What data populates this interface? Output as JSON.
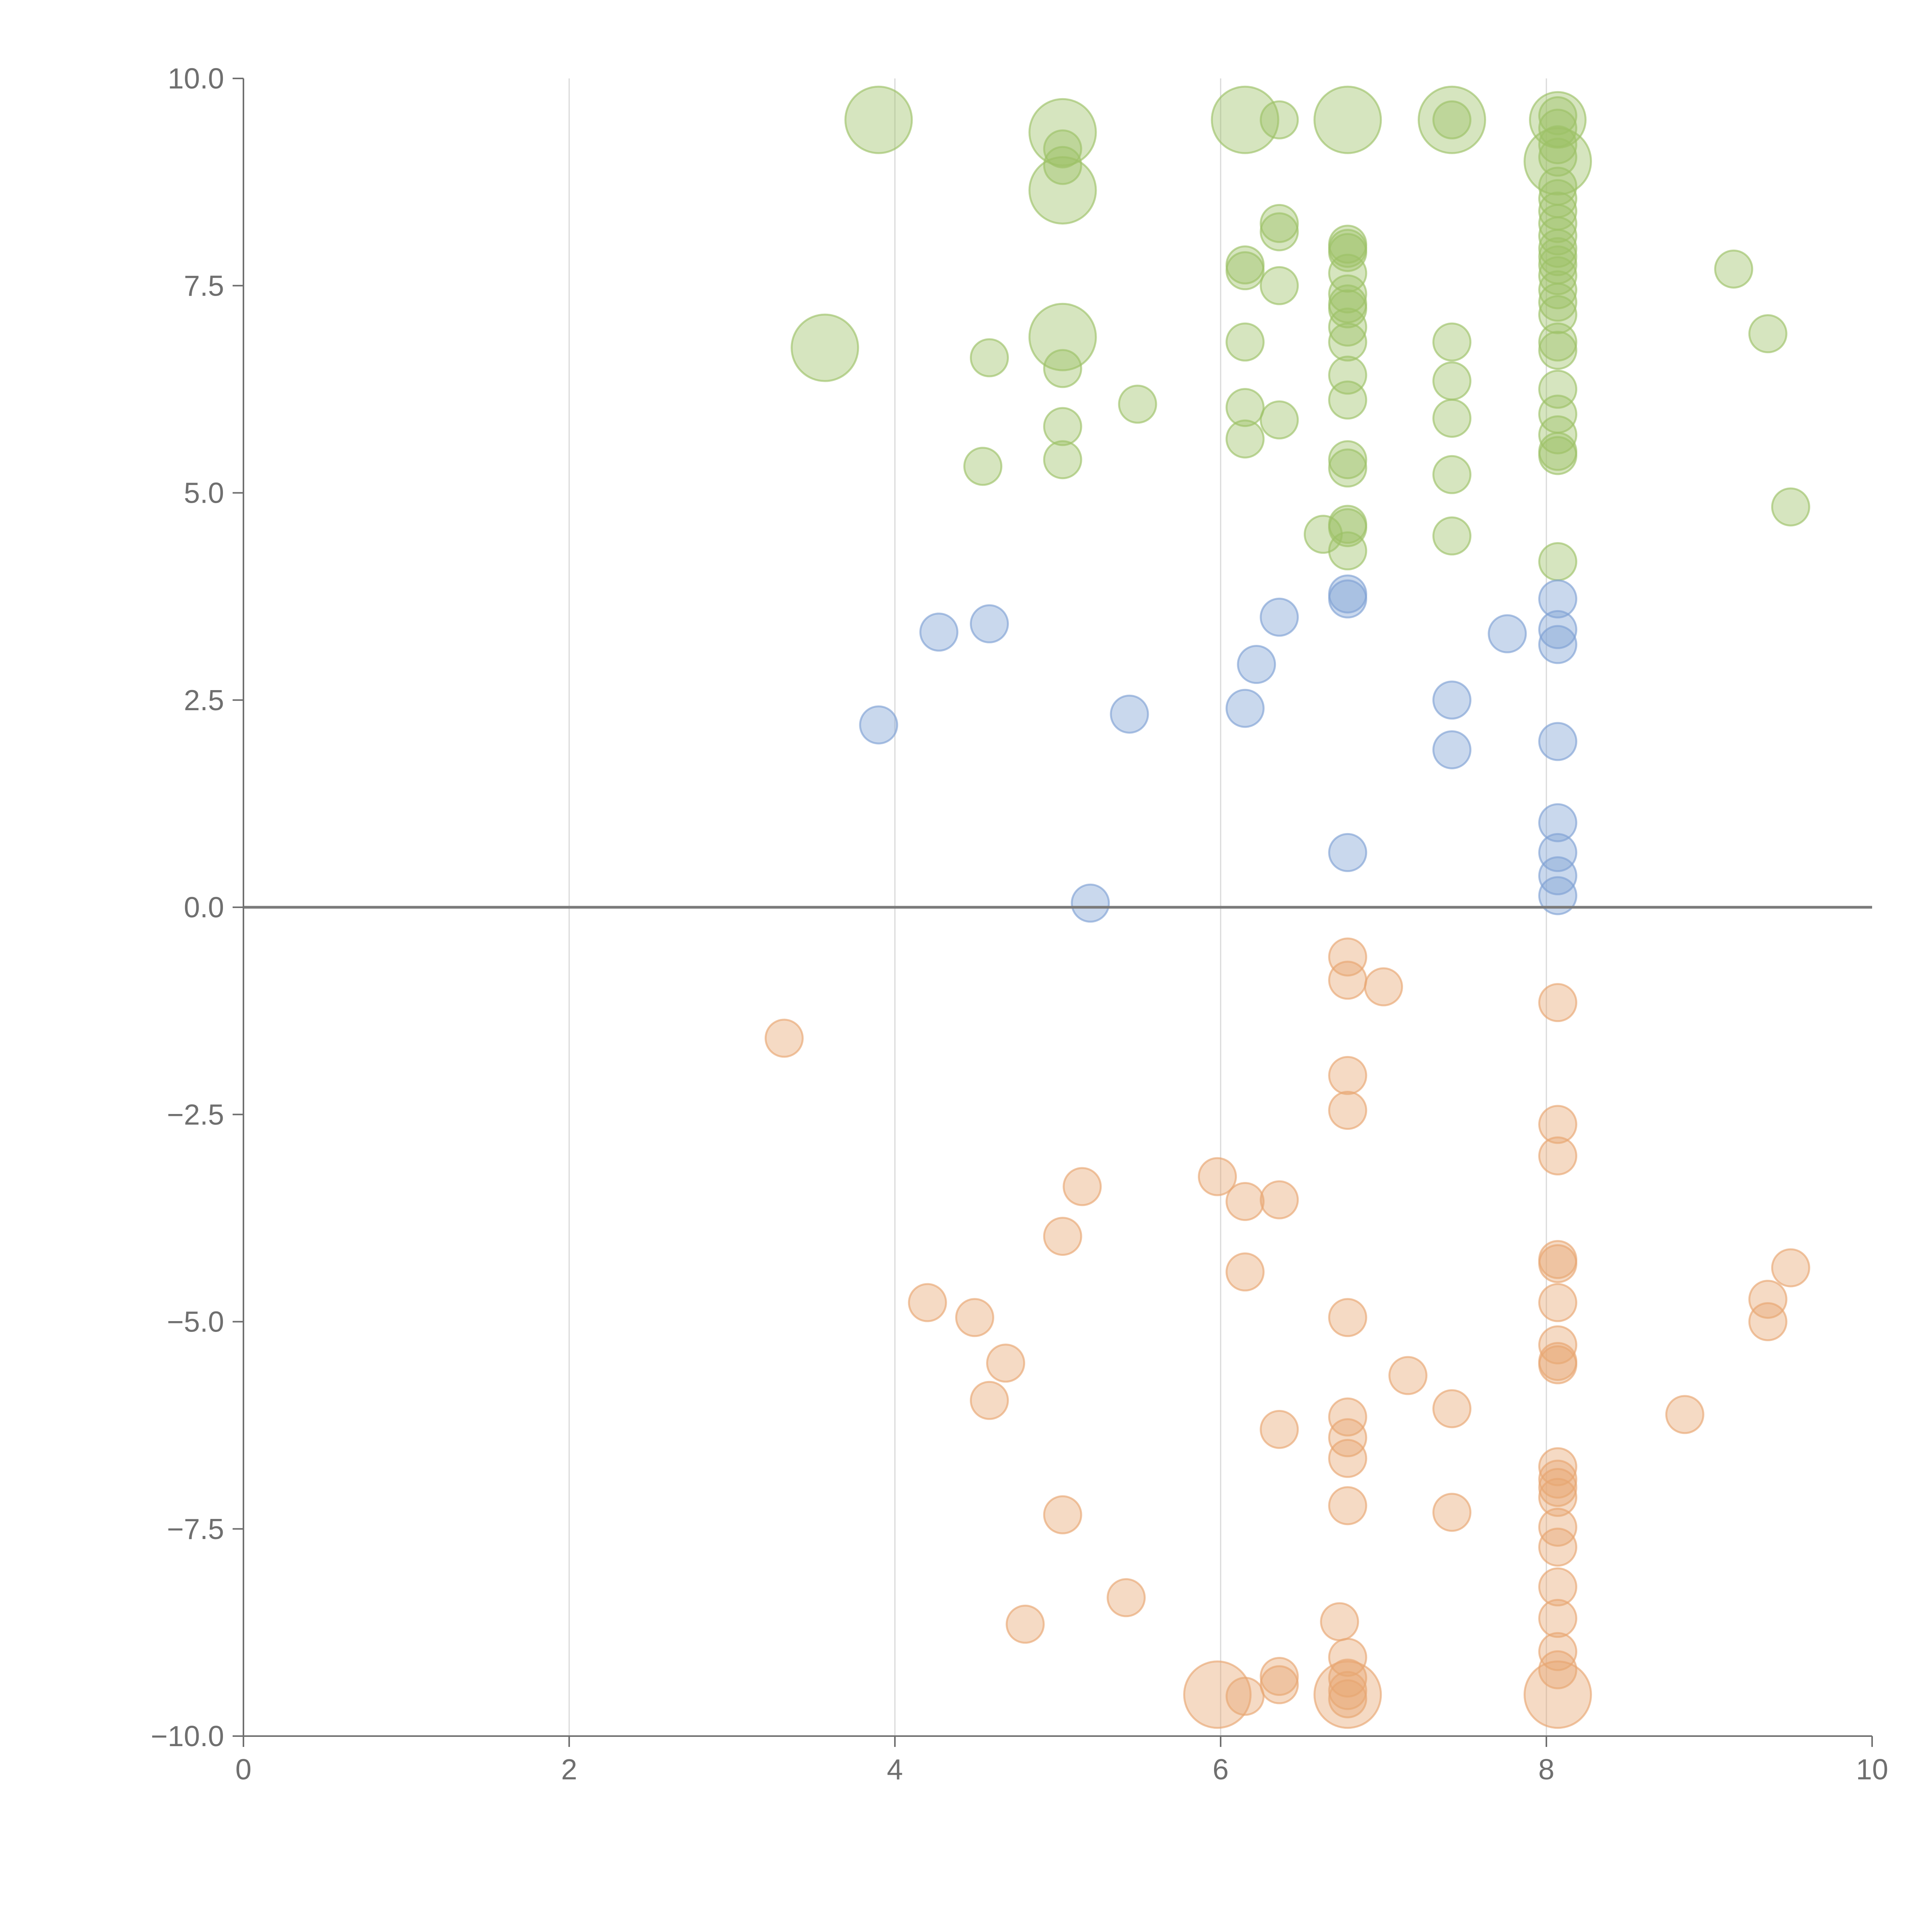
{
  "chart_data": {
    "type": "scatter",
    "title": "",
    "xlabel": "",
    "ylabel": "",
    "xlim": [
      0,
      10
    ],
    "ylim": [
      -10,
      10
    ],
    "xticks": [
      "0",
      "2",
      "4",
      "6",
      "8",
      "10"
    ],
    "yticks": [
      "10.0",
      "7.5",
      "5.0",
      "2.5",
      "0.0",
      "−2.5",
      "−5.0",
      "−7.5",
      "−10.0"
    ],
    "grid": "vertical at x = 2, 4, 6, 8",
    "reference_line_y": 0,
    "series": [
      {
        "color": "#9dc167",
        "points": [
          [
            3.9,
            9.5,
            3
          ],
          [
            5.03,
            9.35,
            3
          ],
          [
            5.03,
            8.65,
            3
          ],
          [
            6.15,
            9.5,
            3
          ],
          [
            6.78,
            9.5,
            3
          ],
          [
            7.42,
            9.5,
            3
          ],
          [
            8.07,
            9.5,
            2
          ],
          [
            8.07,
            9.0,
            3
          ],
          [
            3.57,
            6.75,
            3
          ],
          [
            5.03,
            6.88,
            3
          ],
          [
            5.03,
            9.15,
            1
          ],
          [
            5.03,
            8.95,
            1
          ],
          [
            6.36,
            9.5,
            1
          ],
          [
            7.42,
            9.5,
            1
          ],
          [
            8.07,
            9.4,
            1
          ],
          [
            8.07,
            9.55,
            1
          ],
          [
            8.07,
            9.2,
            1
          ],
          [
            8.07,
            9.05,
            1
          ],
          [
            6.36,
            8.25,
            1
          ],
          [
            6.36,
            8.15,
            1
          ],
          [
            6.15,
            7.75,
            1
          ],
          [
            6.15,
            7.68,
            1
          ],
          [
            6.36,
            7.5,
            1
          ],
          [
            6.78,
            8.0,
            1
          ],
          [
            6.78,
            7.95,
            1
          ],
          [
            6.78,
            7.9,
            1
          ],
          [
            6.78,
            7.65,
            1
          ],
          [
            6.78,
            7.4,
            1
          ],
          [
            6.78,
            7.28,
            1
          ],
          [
            6.78,
            7.22,
            1
          ],
          [
            6.78,
            7.0,
            1
          ],
          [
            6.78,
            6.82,
            1
          ],
          [
            6.78,
            6.42,
            1
          ],
          [
            6.78,
            6.12,
            1
          ],
          [
            6.78,
            5.4,
            1
          ],
          [
            6.78,
            5.3,
            1
          ],
          [
            6.78,
            4.62,
            1
          ],
          [
            6.78,
            4.58,
            1
          ],
          [
            6.78,
            4.3,
            1
          ],
          [
            6.63,
            4.5,
            1
          ],
          [
            8.07,
            8.7,
            1
          ],
          [
            8.07,
            8.55,
            1
          ],
          [
            8.07,
            8.4,
            1
          ],
          [
            8.07,
            8.25,
            1
          ],
          [
            8.07,
            8.1,
            1
          ],
          [
            8.07,
            7.95,
            1
          ],
          [
            8.07,
            7.85,
            1
          ],
          [
            8.07,
            7.75,
            1
          ],
          [
            8.07,
            7.62,
            1
          ],
          [
            8.07,
            7.45,
            1
          ],
          [
            8.07,
            7.3,
            1
          ],
          [
            8.07,
            7.15,
            1
          ],
          [
            8.07,
            6.82,
            1
          ],
          [
            8.07,
            6.72,
            1
          ],
          [
            8.07,
            6.25,
            1
          ],
          [
            8.07,
            5.95,
            1
          ],
          [
            8.07,
            5.7,
            1
          ],
          [
            8.07,
            5.5,
            1
          ],
          [
            8.07,
            5.45,
            1
          ],
          [
            8.07,
            4.17,
            1
          ],
          [
            4.58,
            6.63,
            1
          ],
          [
            5.03,
            6.5,
            1
          ],
          [
            5.49,
            6.07,
            1
          ],
          [
            5.03,
            5.8,
            1
          ],
          [
            5.03,
            5.4,
            1
          ],
          [
            4.54,
            5.32,
            1
          ],
          [
            6.15,
            6.82,
            1
          ],
          [
            6.15,
            6.03,
            1
          ],
          [
            6.15,
            5.65,
            1
          ],
          [
            6.36,
            5.88,
            1
          ],
          [
            7.42,
            6.82,
            1
          ],
          [
            7.42,
            6.35,
            1
          ],
          [
            7.42,
            5.9,
            1
          ],
          [
            7.42,
            5.22,
            1
          ],
          [
            7.42,
            4.48,
            1
          ],
          [
            9.15,
            7.7,
            1
          ],
          [
            9.36,
            6.92,
            1
          ],
          [
            9.5,
            4.83,
            1
          ]
        ]
      },
      {
        "color": "#7fa2d4",
        "points": [
          [
            6.78,
            3.78,
            1
          ],
          [
            6.78,
            3.72,
            1
          ],
          [
            4.27,
            3.32,
            1
          ],
          [
            4.58,
            3.42,
            1
          ],
          [
            6.36,
            3.5,
            1
          ],
          [
            6.22,
            2.93,
            1
          ],
          [
            6.15,
            2.4,
            1
          ],
          [
            5.44,
            2.33,
            1
          ],
          [
            3.9,
            2.2,
            1
          ],
          [
            7.42,
            2.5,
            1
          ],
          [
            7.42,
            1.9,
            1
          ],
          [
            7.76,
            3.3,
            1
          ],
          [
            8.07,
            3.72,
            1
          ],
          [
            8.07,
            3.35,
            1
          ],
          [
            8.07,
            3.17,
            1
          ],
          [
            8.07,
            2.0,
            1
          ],
          [
            8.07,
            1.02,
            1
          ],
          [
            8.07,
            0.66,
            1
          ],
          [
            8.07,
            0.38,
            1
          ],
          [
            8.07,
            0.14,
            1
          ],
          [
            6.78,
            0.66,
            1
          ],
          [
            5.2,
            0.05,
            1
          ]
        ]
      },
      {
        "color": "#e8a672",
        "points": [
          [
            6.78,
            -0.6,
            1
          ],
          [
            6.78,
            -0.88,
            1
          ],
          [
            7.0,
            -0.96,
            1
          ],
          [
            8.07,
            -1.15,
            1
          ],
          [
            3.32,
            -1.58,
            1
          ],
          [
            6.78,
            -2.03,
            1
          ],
          [
            6.78,
            -2.45,
            1
          ],
          [
            8.07,
            -2.62,
            1
          ],
          [
            8.07,
            -3.0,
            1
          ],
          [
            5.98,
            -3.25,
            1
          ],
          [
            5.15,
            -3.37,
            1
          ],
          [
            6.15,
            -3.55,
            1
          ],
          [
            6.36,
            -3.53,
            1
          ],
          [
            5.03,
            -3.97,
            1
          ],
          [
            6.15,
            -4.4,
            1
          ],
          [
            8.07,
            -4.25,
            1
          ],
          [
            8.07,
            -4.3,
            1
          ],
          [
            8.07,
            -4.77,
            1
          ],
          [
            4.2,
            -4.77,
            1
          ],
          [
            4.49,
            -4.95,
            1
          ],
          [
            6.78,
            -4.95,
            1
          ],
          [
            4.68,
            -5.5,
            1
          ],
          [
            4.58,
            -5.95,
            1
          ],
          [
            7.15,
            -5.65,
            1
          ],
          [
            7.42,
            -6.05,
            1
          ],
          [
            6.78,
            -6.15,
            1
          ],
          [
            6.78,
            -6.4,
            1
          ],
          [
            6.78,
            -6.65,
            1
          ],
          [
            6.36,
            -6.3,
            1
          ],
          [
            8.07,
            -5.28,
            1
          ],
          [
            8.07,
            -5.48,
            1
          ],
          [
            8.07,
            -5.52,
            1
          ],
          [
            9.36,
            -4.73,
            1
          ],
          [
            9.36,
            -5.0,
            1
          ],
          [
            9.5,
            -4.35,
            1
          ],
          [
            8.85,
            -6.12,
            1
          ],
          [
            8.07,
            -6.75,
            1
          ],
          [
            8.07,
            -6.9,
            1
          ],
          [
            8.07,
            -7.0,
            1
          ],
          [
            8.07,
            -7.12,
            1
          ],
          [
            6.78,
            -7.22,
            1
          ],
          [
            7.42,
            -7.3,
            1
          ],
          [
            5.03,
            -7.33,
            1
          ],
          [
            8.07,
            -7.48,
            1
          ],
          [
            8.07,
            -7.72,
            1
          ],
          [
            8.07,
            -8.2,
            1
          ],
          [
            5.42,
            -8.33,
            1
          ],
          [
            4.8,
            -8.65,
            1
          ],
          [
            8.07,
            -8.58,
            1
          ],
          [
            6.73,
            -8.62,
            1
          ],
          [
            8.07,
            -8.98,
            1
          ],
          [
            8.07,
            -9.2,
            1
          ],
          [
            6.78,
            -9.05,
            1
          ],
          [
            6.78,
            -9.3,
            1
          ],
          [
            6.36,
            -9.28,
            1
          ],
          [
            6.36,
            -9.38,
            1
          ],
          [
            6.78,
            -9.45,
            1
          ],
          [
            6.78,
            -9.55,
            1
          ],
          [
            6.15,
            -9.52,
            1
          ],
          [
            5.98,
            -9.5,
            3
          ],
          [
            6.78,
            -9.5,
            3
          ],
          [
            8.07,
            -9.5,
            3
          ]
        ]
      }
    ]
  }
}
